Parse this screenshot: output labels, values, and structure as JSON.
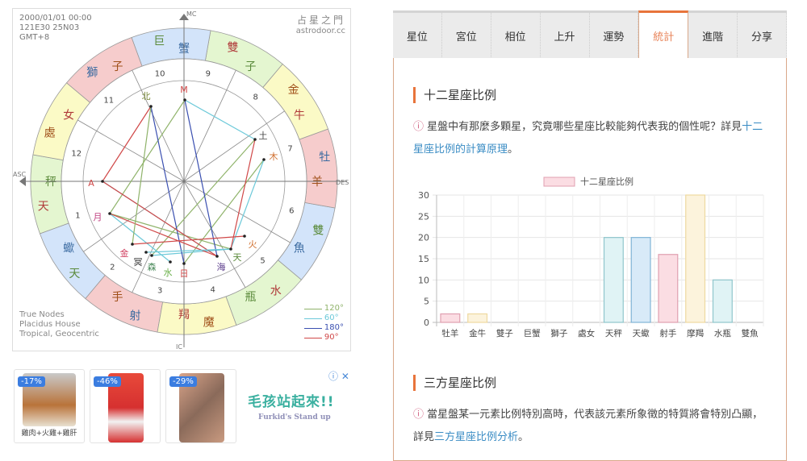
{
  "chart_info": {
    "datetime": "2000/01/01 00:00",
    "coords": "121E30 25N03",
    "timezone": "GMT+8",
    "brand_cn": "占星之門",
    "brand_url": "astrodoor.cc",
    "axis_labels": {
      "mc": "MC",
      "ic": "IC",
      "asc": "ASC",
      "des": "DES"
    },
    "settings": [
      "True Nodes",
      "Placidus House",
      "Tropical, Geocentric"
    ],
    "aspect_legend": [
      {
        "label": "120°",
        "color": "#8fb36a"
      },
      {
        "label": "60°",
        "color": "#6cc9d9"
      },
      {
        "label": "180°",
        "color": "#3a4fb0"
      },
      {
        "label": "90°",
        "color": "#d04848"
      }
    ],
    "signs": [
      {
        "name": "天秤",
        "color": "#e4f6d0"
      },
      {
        "name": "天蠍",
        "color": "#d3e4fa"
      },
      {
        "name": "射手",
        "color": "#f6cccc"
      },
      {
        "name": "魔羯",
        "color": "#fbfac6"
      },
      {
        "name": "水瓶",
        "color": "#e4f6d0"
      },
      {
        "name": "雙魚",
        "color": "#d3e4fa"
      },
      {
        "name": "牡羊",
        "color": "#f6cccc"
      },
      {
        "name": "金牛",
        "color": "#fbfac6"
      },
      {
        "name": "雙子",
        "color": "#e4f6d0"
      },
      {
        "name": "巨蟹",
        "color": "#d3e4fa"
      },
      {
        "name": "獅子",
        "color": "#f6cccc"
      },
      {
        "name": "處女",
        "color": "#fbfac6"
      }
    ],
    "houses": [
      "1",
      "2",
      "3",
      "4",
      "5",
      "6",
      "7",
      "8",
      "9",
      "10",
      "11",
      "12"
    ],
    "planets": [
      "M",
      "北",
      "土",
      "木",
      "A",
      "月",
      "金",
      "冥",
      "森",
      "水",
      "日",
      "海",
      "天",
      "火"
    ]
  },
  "ads": {
    "items": [
      {
        "discount": "-17%",
        "caption": "雞肉+火雞+雞肝"
      },
      {
        "discount": "-46%",
        "caption": ""
      },
      {
        "discount": "-29%",
        "caption": ""
      }
    ],
    "brand": "毛孩站起來!!",
    "brand_sub": "Furkid's Stand up",
    "controls": "ⓘ ✕"
  },
  "tabs": [
    {
      "label": "星位"
    },
    {
      "label": "宮位"
    },
    {
      "label": "相位"
    },
    {
      "label": "上升"
    },
    {
      "label": "運勢"
    },
    {
      "label": "統計",
      "active": true
    },
    {
      "label": "進階"
    },
    {
      "label": "分享"
    }
  ],
  "section1": {
    "title": "十二星座比例",
    "info_icon": "ⓘ",
    "text": "星盤中有那麼多顆星，究竟哪些星座比較能夠代表我的個性呢？詳見",
    "link": "十二星座比例的計算原理",
    "end": "。"
  },
  "section2": {
    "title": "三方星座比例",
    "info_icon": "ⓘ",
    "text": "當星盤某一元素比例特別高時，代表該元素所象徵的特質將會特別凸顯，詳見",
    "link": "三方星座比例分析",
    "end": "。"
  },
  "chart_data": {
    "type": "bar",
    "legend": "十二星座比例",
    "legend_placement": "top",
    "categories": [
      "牡羊",
      "金牛",
      "雙子",
      "巨蟹",
      "獅子",
      "處女",
      "天秤",
      "天蠍",
      "射手",
      "摩羯",
      "水瓶",
      "雙魚"
    ],
    "values": [
      2,
      2,
      0,
      0,
      0,
      0,
      20,
      20,
      16,
      30,
      10,
      0
    ],
    "fill_colors": [
      "#fbdde3",
      "#fcf3dc",
      "#fbdde3",
      "#fcf3dc",
      "#fbdde3",
      "#fcf3dc",
      "#e0f3f5",
      "#d8eaf8",
      "#fbdde3",
      "#fcf3dc",
      "#e0f3f5",
      "#d8eaf8"
    ],
    "border_colors": [
      "#e0a0b0",
      "#eed9a0",
      "#e0a0b0",
      "#eed9a0",
      "#e0a0b0",
      "#eed9a0",
      "#8fc6cc",
      "#80b4d6",
      "#e0a0b0",
      "#eed9a0",
      "#8fc6cc",
      "#80b4d6"
    ],
    "yticks": [
      0,
      5,
      10,
      15,
      20,
      25,
      30
    ],
    "ylim": [
      0,
      30
    ],
    "grid": true
  }
}
